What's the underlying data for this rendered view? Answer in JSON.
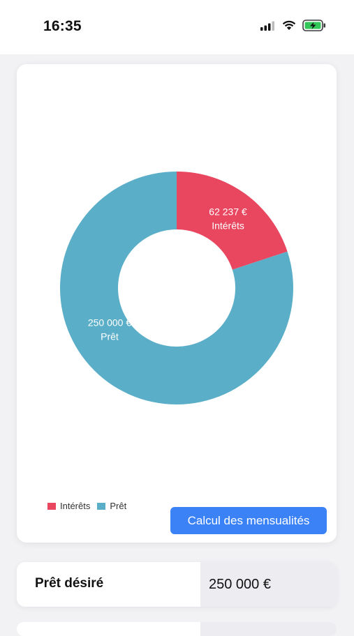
{
  "status_bar": {
    "time": "16:35",
    "icons": [
      "cellular-signal-icon",
      "wifi-icon",
      "battery-charging-icon"
    ]
  },
  "chart_data": {
    "type": "pie",
    "variant": "donut",
    "slices": [
      {
        "name": "Intérêts",
        "value": 62237,
        "value_label": "62 237 €",
        "color": "#e8475f"
      },
      {
        "name": "Prêt",
        "value": 250000,
        "value_label": "250 000 €",
        "color": "#5aaec8"
      }
    ],
    "legend": [
      "Intérêts",
      "Prêt"
    ],
    "legend_position": "bottom-left"
  },
  "legend": {
    "items": [
      {
        "label": "Intérêts",
        "color": "#e8475f"
      },
      {
        "label": "Prêt",
        "color": "#5aaec8"
      }
    ]
  },
  "actions": {
    "calc_label": "Calcul des mensualités"
  },
  "fields": {
    "loan": {
      "label": "Prêt désiré",
      "value": "250 000 €"
    }
  },
  "colors": {
    "accent": "#3b82f6",
    "interest": "#e8475f",
    "loan": "#5aaec8",
    "input_bg": "#ececf1",
    "page_bg": "#f2f2f5"
  }
}
